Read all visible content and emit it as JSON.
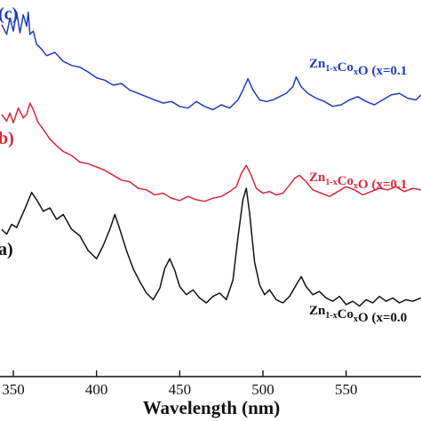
{
  "chart_data": {
    "type": "line",
    "xlabel": "Wavelength (nm)",
    "xlim": [
      342,
      595
    ],
    "xticks": [
      350,
      400,
      450,
      500,
      550
    ],
    "xtick_labels": [
      "350",
      "400",
      "450",
      "500",
      "550"
    ],
    "ylim": [
      -20,
      440
    ],
    "series": [
      {
        "panel": "(c)",
        "name": "Zn1-xCoxO (x=0.1",
        "color": "#1f3bbf",
        "x": [
          343,
          346,
          348,
          350,
          352,
          354,
          356,
          358,
          359,
          360,
          362,
          364,
          367,
          370,
          375,
          380,
          385,
          390,
          395,
          400,
          405,
          410,
          415,
          420,
          425,
          430,
          435,
          440,
          445,
          450,
          455,
          460,
          465,
          470,
          475,
          480,
          485,
          488,
          491,
          494,
          498,
          502,
          506,
          510,
          514,
          518,
          520,
          523,
          527,
          532,
          537,
          542,
          547,
          552,
          557,
          562,
          567,
          572,
          577,
          582,
          587,
          592,
          595
        ],
        "y": [
          410,
          398,
          418,
          402,
          425,
          400,
          422,
          408,
          425,
          398,
          402,
          386,
          380,
          372,
          376,
          365,
          360,
          358,
          352,
          345,
          342,
          336,
          338,
          330,
          326,
          322,
          318,
          314,
          316,
          310,
          308,
          316,
          310,
          306,
          312,
          308,
          318,
          330,
          344,
          330,
          318,
          316,
          318,
          322,
          326,
          334,
          346,
          334,
          326,
          320,
          316,
          310,
          312,
          318,
          322,
          316,
          312,
          318,
          324,
          326,
          320,
          318,
          324
        ]
      },
      {
        "panel": "(b)",
        "name": "Zn1-xCoxO (x=0.1",
        "color": "#d62839",
        "x": [
          343,
          346,
          348,
          350,
          353,
          356,
          358,
          360,
          362,
          365,
          368,
          372,
          376,
          380,
          385,
          390,
          395,
          400,
          405,
          410,
          415,
          420,
          425,
          430,
          435,
          440,
          445,
          450,
          455,
          460,
          465,
          470,
          475,
          480,
          484,
          487,
          490,
          493,
          496,
          500,
          504,
          508,
          512,
          516,
          519,
          522,
          526,
          530,
          535,
          540,
          545,
          550,
          555,
          560,
          565,
          570,
          575,
          580,
          585,
          590,
          595
        ],
        "y": [
          300,
          292,
          302,
          290,
          308,
          296,
          300,
          314,
          306,
          290,
          282,
          270,
          262,
          255,
          250,
          242,
          240,
          236,
          232,
          226,
          220,
          218,
          210,
          208,
          202,
          204,
          198,
          195,
          200,
          196,
          194,
          198,
          200,
          206,
          212,
          228,
          238,
          226,
          210,
          204,
          206,
          202,
          204,
          214,
          222,
          226,
          218,
          208,
          204,
          200,
          206,
          212,
          208,
          202,
          206,
          210,
          208,
          212,
          206,
          210,
          208
        ]
      },
      {
        "panel": "(a)",
        "name": "Zn1-xCoxO (x=0.0",
        "color": "#111111",
        "x": [
          343,
          346,
          349,
          352,
          355,
          358,
          361,
          364,
          368,
          372,
          376,
          380,
          385,
          390,
          395,
          400,
          404,
          408,
          411,
          414,
          418,
          422,
          426,
          430,
          434,
          438,
          441,
          444,
          447,
          450,
          454,
          458,
          462,
          466,
          470,
          474,
          478,
          482,
          485,
          488,
          490,
          492,
          495,
          498,
          501,
          504,
          508,
          512,
          516,
          520,
          523,
          526,
          530,
          534,
          538,
          542,
          546,
          550,
          554,
          558,
          562,
          566,
          570,
          574,
          578,
          582,
          586,
          590,
          595
        ],
        "y": [
          160,
          154,
          166,
          162,
          176,
          190,
          205,
          196,
          182,
          186,
          172,
          178,
          160,
          152,
          134,
          124,
          140,
          160,
          178,
          160,
          134,
          112,
          96,
          82,
          74,
          88,
          112,
          124,
          110,
          90,
          80,
          86,
          76,
          70,
          78,
          82,
          74,
          98,
          150,
          196,
          210,
          180,
          120,
          92,
          80,
          86,
          74,
          70,
          78,
          92,
          102,
          90,
          80,
          84,
          76,
          72,
          78,
          68,
          72,
          66,
          74,
          70,
          78,
          72,
          76,
          70,
          74,
          72,
          76
        ]
      }
    ],
    "annotations": [
      {
        "series": 0,
        "prefix": "Zn",
        "sub1": "1-x",
        "mid": "Co",
        "sub2": "x",
        "suffix": "O (x=0.1"
      },
      {
        "series": 1,
        "prefix": "Zn",
        "sub1": "1-x",
        "mid": "Co",
        "sub2": "x",
        "suffix": "O (x=0.1"
      },
      {
        "series": 2,
        "prefix": "Zn",
        "sub1": "1-x",
        "mid": "Co",
        "sub2": "x",
        "suffix": "O (x=0.0"
      }
    ],
    "panel_labels": [
      {
        "series": 0,
        "text": "(c)"
      },
      {
        "series": 1,
        "text": "b)"
      },
      {
        "series": 2,
        "text": "a)"
      }
    ]
  }
}
